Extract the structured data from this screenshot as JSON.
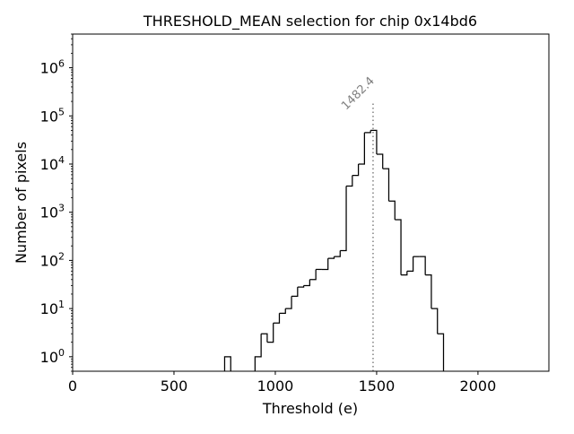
{
  "chart_data": {
    "type": "histogram",
    "title": "THRESHOLD_MEAN selection for chip 0x14bd6",
    "xlabel": "Threshold (e)",
    "ylabel": "Number of pixels",
    "xlim": [
      0,
      2350
    ],
    "ylim": [
      0.5,
      5000000
    ],
    "yscale": "log",
    "grid": false,
    "bin_width": 30,
    "bins_start": 750,
    "x_ticks": [
      {
        "value": 0,
        "label": "0"
      },
      {
        "value": 500,
        "label": "500"
      },
      {
        "value": 1000,
        "label": "1000"
      },
      {
        "value": 1500,
        "label": "1500"
      },
      {
        "value": 2000,
        "label": "2000"
      }
    ],
    "y_ticks": [
      {
        "value": 1,
        "base": "10",
        "exp": "0"
      },
      {
        "value": 10,
        "base": "10",
        "exp": "1"
      },
      {
        "value": 100,
        "base": "10",
        "exp": "2"
      },
      {
        "value": 1000,
        "base": "10",
        "exp": "3"
      },
      {
        "value": 10000,
        "base": "10",
        "exp": "4"
      },
      {
        "value": 100000,
        "base": "10",
        "exp": "5"
      },
      {
        "value": 1000000,
        "base": "10",
        "exp": "6"
      }
    ],
    "counts": [
      1,
      0,
      0,
      0,
      0,
      1,
      3,
      2,
      5,
      8,
      10,
      18,
      28,
      30,
      40,
      65,
      65,
      110,
      120,
      160,
      3500,
      5800,
      10000,
      45000,
      50000,
      16000,
      8000,
      1700,
      700,
      50,
      60,
      120,
      120,
      50,
      10,
      3,
      0
    ],
    "annotation": {
      "value": 1482.4,
      "label": "1482.4",
      "line_style": "dotted",
      "color": "#808080"
    }
  }
}
